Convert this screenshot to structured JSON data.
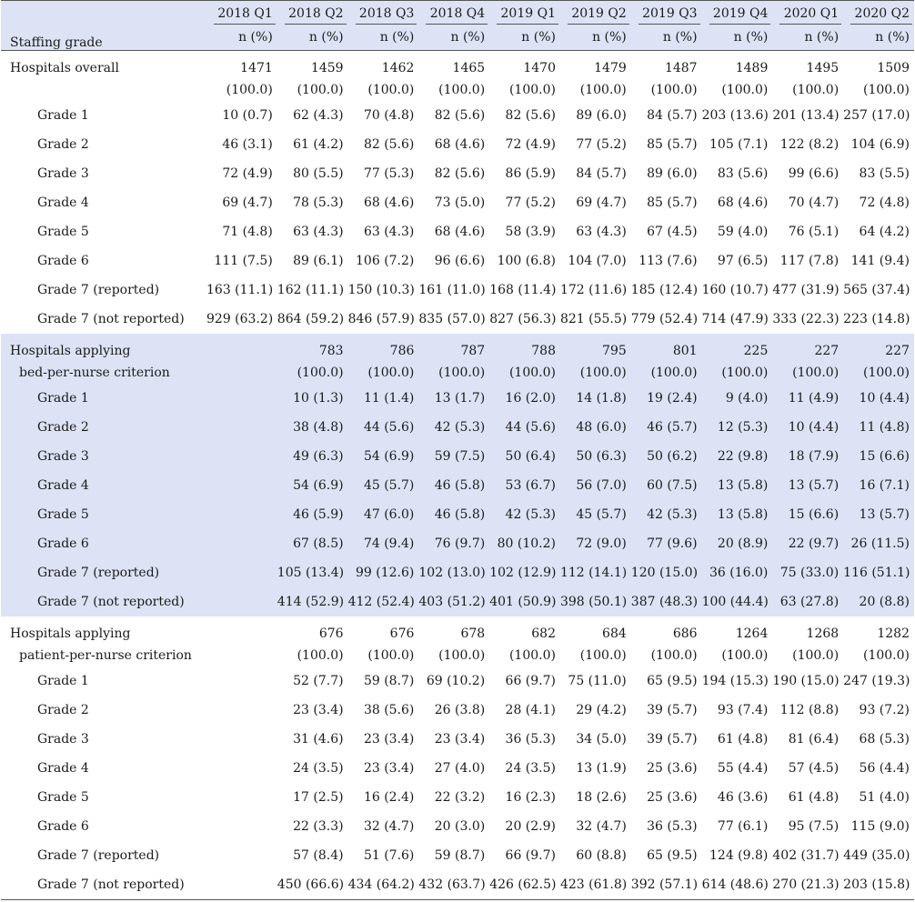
{
  "header": {
    "grade_label": "Staffing grade",
    "quarters": [
      "2018 Q1",
      "2018 Q2",
      "2018 Q3",
      "2018 Q4",
      "2019 Q1",
      "2019 Q2",
      "2019 Q3",
      "2019 Q4",
      "2020 Q1",
      "2020 Q2"
    ],
    "unit": "n (%)"
  },
  "sections": [
    {
      "label_lines": [
        "Hospitals overall"
      ],
      "totals": [
        "1471",
        "1459",
        "1462",
        "1465",
        "1470",
        "1479",
        "1487",
        "1489",
        "1495",
        "1509"
      ],
      "total_pct": "(100.0)",
      "shaded": false,
      "rows": [
        {
          "label": "Grade 1",
          "values": [
            "10 (0.7)",
            "62 (4.3)",
            "70 (4.8)",
            "82 (5.6)",
            "82 (5.6)",
            "89 (6.0)",
            "84 (5.7)",
            "203 (13.6)",
            "201 (13.4)",
            "257 (17.0)"
          ]
        },
        {
          "label": "Grade 2",
          "values": [
            "46 (3.1)",
            "61 (4.2)",
            "82 (5.6)",
            "68 (4.6)",
            "72 (4.9)",
            "77 (5.2)",
            "85 (5.7)",
            "105 (7.1)",
            "122 (8.2)",
            "104 (6.9)"
          ]
        },
        {
          "label": "Grade 3",
          "values": [
            "72 (4.9)",
            "80 (5.5)",
            "77 (5.3)",
            "82 (5.6)",
            "86 (5.9)",
            "84 (5.7)",
            "89 (6.0)",
            "83 (5.6)",
            "99 (6.6)",
            "83 (5.5)"
          ]
        },
        {
          "label": "Grade 4",
          "values": [
            "69 (4.7)",
            "78 (5.3)",
            "68 (4.6)",
            "73 (5.0)",
            "77 (5.2)",
            "69 (4.7)",
            "85 (5.7)",
            "68 (4.6)",
            "70 (4.7)",
            "72 (4.8)"
          ]
        },
        {
          "label": "Grade 5",
          "values": [
            "71 (4.8)",
            "63 (4.3)",
            "63 (4.3)",
            "68 (4.6)",
            "58 (3.9)",
            "63 (4.3)",
            "67 (4.5)",
            "59 (4.0)",
            "76 (5.1)",
            "64 (4.2)"
          ]
        },
        {
          "label": "Grade 6",
          "values": [
            "111 (7.5)",
            "89 (6.1)",
            "106 (7.2)",
            "96 (6.6)",
            "100 (6.8)",
            "104 (7.0)",
            "113 (7.6)",
            "97 (6.5)",
            "117 (7.8)",
            "141 (9.4)"
          ]
        },
        {
          "label": "Grade 7 (reported)",
          "values": [
            "163 (11.1)",
            "162 (11.1)",
            "150 (10.3)",
            "161 (11.0)",
            "168 (11.4)",
            "172 (11.6)",
            "185 (12.4)",
            "160 (10.7)",
            "477 (31.9)",
            "565 (37.4)"
          ]
        },
        {
          "label": "Grade 7 (not reported)",
          "values": [
            "929 (63.2)",
            "864 (59.2)",
            "846 (57.9)",
            "835 (57.0)",
            "827 (56.3)",
            "821 (55.5)",
            "779 (52.4)",
            "714 (47.9)",
            "333 (22.3)",
            "223 (14.8)"
          ]
        }
      ]
    },
    {
      "label_lines": [
        "Hospitals applying",
        "bed-per-nurse criterion"
      ],
      "totals": [
        "",
        "783",
        "786",
        "787",
        "788",
        "795",
        "801",
        "225",
        "227",
        "227"
      ],
      "total_pct": "(100.0)",
      "shaded": true,
      "rows": [
        {
          "label": "Grade 1",
          "values": [
            "10 (1.3)",
            "11 (1.4)",
            "13 (1.7)",
            "16 (2.0)",
            "14 (1.8)",
            "19 (2.4)",
            "9 (4.0)",
            "11 (4.9)",
            "10 (4.4)"
          ]
        },
        {
          "label": "Grade 2",
          "values": [
            "38 (4.8)",
            "44 (5.6)",
            "42 (5.3)",
            "44 (5.6)",
            "48 (6.0)",
            "46 (5.7)",
            "12 (5.3)",
            "10 (4.4)",
            "11 (4.8)"
          ]
        },
        {
          "label": "Grade 3",
          "values": [
            "49 (6.3)",
            "54 (6.9)",
            "59 (7.5)",
            "50 (6.4)",
            "50 (6.3)",
            "50 (6.2)",
            "22 (9.8)",
            "18 (7.9)",
            "15 (6.6)"
          ]
        },
        {
          "label": "Grade 4",
          "values": [
            "54 (6.9)",
            "45 (5.7)",
            "46 (5.8)",
            "53 (6.7)",
            "56 (7.0)",
            "60 (7.5)",
            "13 (5.8)",
            "13 (5.7)",
            "16 (7.1)"
          ]
        },
        {
          "label": "Grade 5",
          "values": [
            "46 (5.9)",
            "47 (6.0)",
            "46 (5.8)",
            "42 (5.3)",
            "45 (5.7)",
            "42 (5.3)",
            "13 (5.8)",
            "15 (6.6)",
            "13 (5.7)"
          ]
        },
        {
          "label": "Grade 6",
          "values": [
            "67 (8.5)",
            "74 (9.4)",
            "76 (9.7)",
            "80 (10.2)",
            "72 (9.0)",
            "77 (9.6)",
            "20 (8.9)",
            "22 (9.7)",
            "26 (11.5)"
          ]
        },
        {
          "label": "Grade 7 (reported)",
          "values": [
            "105 (13.4)",
            "99 (12.6)",
            "102 (13.0)",
            "102 (12.9)",
            "112 (14.1)",
            "120 (15.0)",
            "36 (16.0)",
            "75 (33.0)",
            "116 (51.1)"
          ]
        },
        {
          "label": "Grade 7 (not reported)",
          "values": [
            "414 (52.9)",
            "412 (52.4)",
            "403 (51.2)",
            "401 (50.9)",
            "398 (50.1)",
            "387 (48.3)",
            "100 (44.4)",
            "63 (27.8)",
            "20 (8.8)"
          ]
        }
      ]
    },
    {
      "label_lines": [
        "Hospitals applying",
        "patient-per-nurse criterion"
      ],
      "totals": [
        "",
        "676",
        "676",
        "678",
        "682",
        "684",
        "686",
        "1264",
        "1268",
        "1282"
      ],
      "total_pct": "(100.0)",
      "shaded": false,
      "rows": [
        {
          "label": "Grade 1",
          "values": [
            "52 (7.7)",
            "59 (8.7)",
            "69 (10.2)",
            "66 (9.7)",
            "75 (11.0)",
            "65 (9.5)",
            "194 (15.3)",
            "190 (15.0)",
            "247 (19.3)"
          ]
        },
        {
          "label": "Grade 2",
          "values": [
            "23 (3.4)",
            "38 (5.6)",
            "26 (3.8)",
            "28 (4.1)",
            "29 (4.2)",
            "39 (5.7)",
            "93 (7.4)",
            "112 (8.8)",
            "93 (7.2)"
          ]
        },
        {
          "label": "Grade 3",
          "values": [
            "31 (4.6)",
            "23 (3.4)",
            "23 (3.4)",
            "36 (5.3)",
            "34 (5.0)",
            "39 (5.7)",
            "61 (4.8)",
            "81 (6.4)",
            "68 (5.3)"
          ]
        },
        {
          "label": "Grade 4",
          "values": [
            "24 (3.5)",
            "23 (3.4)",
            "27 (4.0)",
            "24 (3.5)",
            "13 (1.9)",
            "25 (3.6)",
            "55 (4.4)",
            "57 (4.5)",
            "56 (4.4)"
          ]
        },
        {
          "label": "Grade 5",
          "values": [
            "17 (2.5)",
            "16 (2.4)",
            "22 (3.2)",
            "16 (2.3)",
            "18 (2.6)",
            "25 (3.6)",
            "46 (3.6)",
            "61 (4.8)",
            "51 (4.0)"
          ]
        },
        {
          "label": "Grade 6",
          "values": [
            "22 (3.3)",
            "32 (4.7)",
            "20 (3.0)",
            "20 (2.9)",
            "32 (4.7)",
            "36 (5.3)",
            "77 (6.1)",
            "95 (7.5)",
            "115 (9.0)"
          ]
        },
        {
          "label": "Grade 7 (reported)",
          "values": [
            "57 (8.4)",
            "51 (7.6)",
            "59 (8.7)",
            "66 (9.7)",
            "60 (8.8)",
            "65 (9.5)",
            "124 (9.8)",
            "402 (31.7)",
            "449 (35.0)"
          ]
        },
        {
          "label": "Grade 7 (not reported)",
          "values": [
            "450 (66.6)",
            "434 (64.2)",
            "432 (63.7)",
            "426 (62.5)",
            "423 (61.8)",
            "392 (57.1)",
            "614 (48.6)",
            "270 (21.3)",
            "203 (15.8)"
          ]
        }
      ]
    }
  ]
}
